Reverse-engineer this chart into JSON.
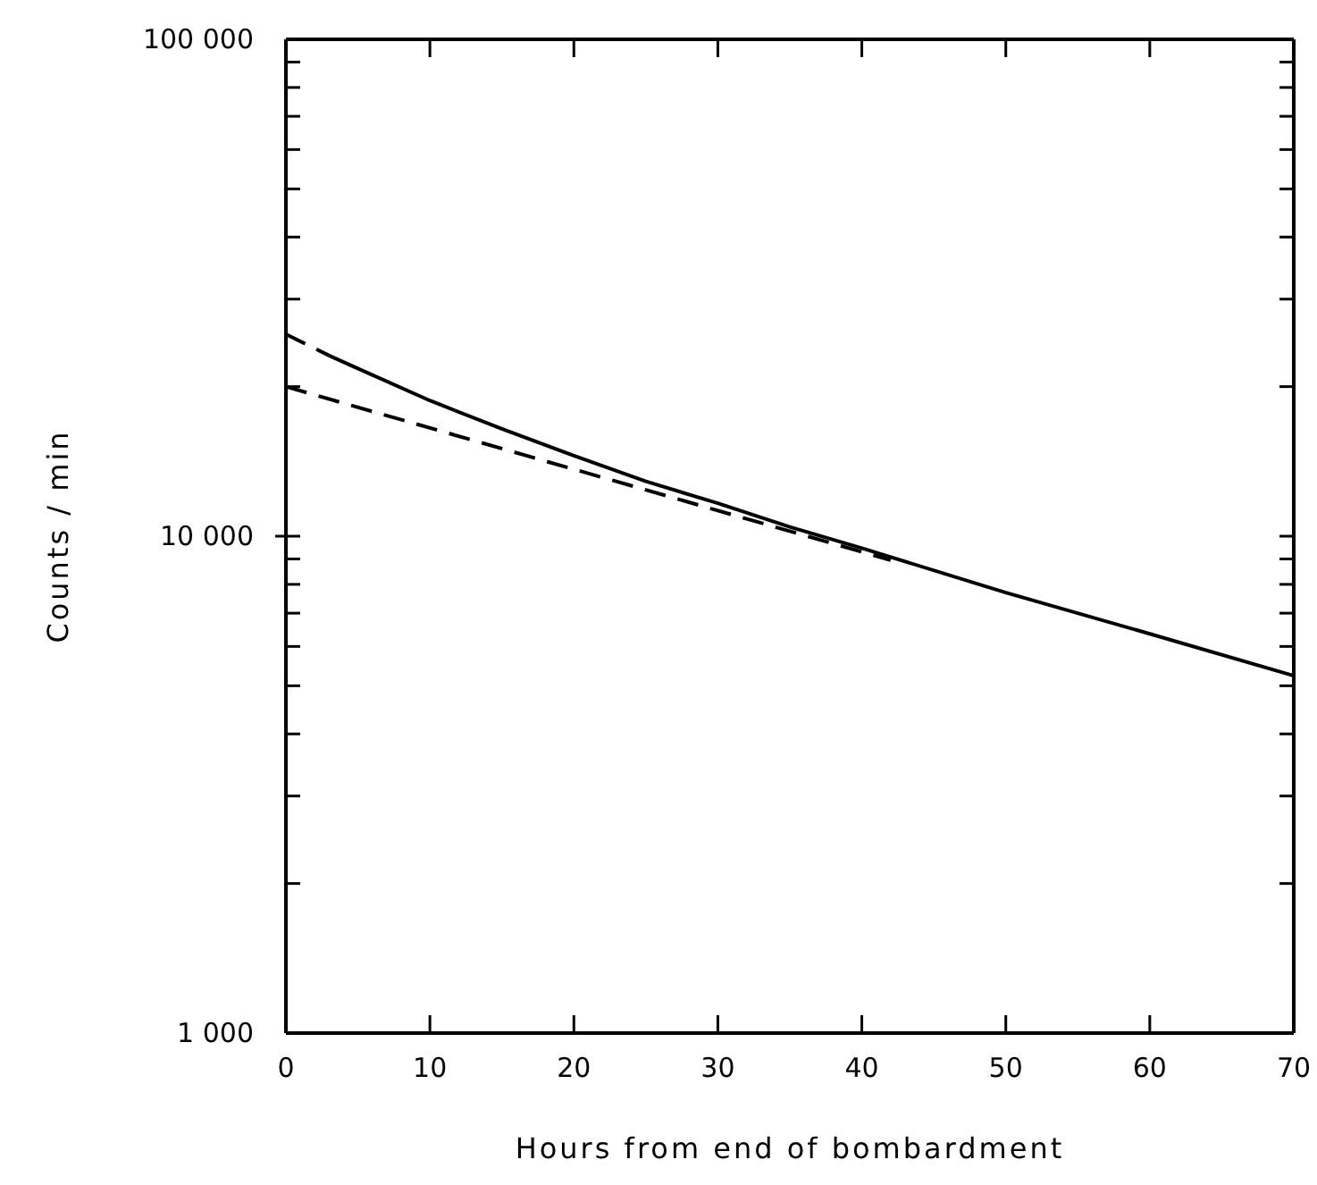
{
  "chart_data": {
    "type": "line",
    "xlabel": "Hours from end of bombardment",
    "ylabel": "Counts / min",
    "log": "y",
    "grid": false,
    "marker": "none",
    "xlim": [
      0,
      70
    ],
    "xticks": [
      0,
      10,
      20,
      30,
      40,
      50,
      60,
      70
    ],
    "ylim": [
      1000,
      100000
    ],
    "yticks": [
      {
        "value": 1000,
        "label": "1 000"
      },
      {
        "value": 2000,
        "label": null
      },
      {
        "value": 3000,
        "label": null
      },
      {
        "value": 4000,
        "label": null
      },
      {
        "value": 5000,
        "label": null
      },
      {
        "value": 6000,
        "label": null
      },
      {
        "value": 7000,
        "label": null
      },
      {
        "value": 8000,
        "label": null
      },
      {
        "value": 9000,
        "label": null
      },
      {
        "value": 10000,
        "label": "10 000"
      },
      {
        "value": 20000,
        "label": null
      },
      {
        "value": 30000,
        "label": null
      },
      {
        "value": 40000,
        "label": null
      },
      {
        "value": 50000,
        "label": null
      },
      {
        "value": 60000,
        "label": null
      },
      {
        "value": 70000,
        "label": null
      },
      {
        "value": 80000,
        "label": null
      },
      {
        "value": 90000,
        "label": null
      },
      {
        "value": 100000,
        "label": "100 000"
      }
    ],
    "series": [
      {
        "color": "#000000",
        "line_style": "dashed",
        "x": [
          0,
          3
        ],
        "values": [
          25500,
          23100
        ]
      },
      {
        "color": "#000000",
        "line_style": "solid",
        "x": [
          3,
          5,
          10,
          15,
          20,
          25,
          30,
          35,
          40,
          50,
          60,
          70
        ],
        "values": [
          23100,
          21750,
          18750,
          16440,
          14520,
          12890,
          11650,
          10440,
          9460,
          7700,
          6360,
          5240
        ]
      },
      {
        "color": "#000000",
        "line_style": "dashed",
        "x": [
          0,
          42
        ],
        "values": [
          20000,
          8950
        ]
      }
    ]
  }
}
